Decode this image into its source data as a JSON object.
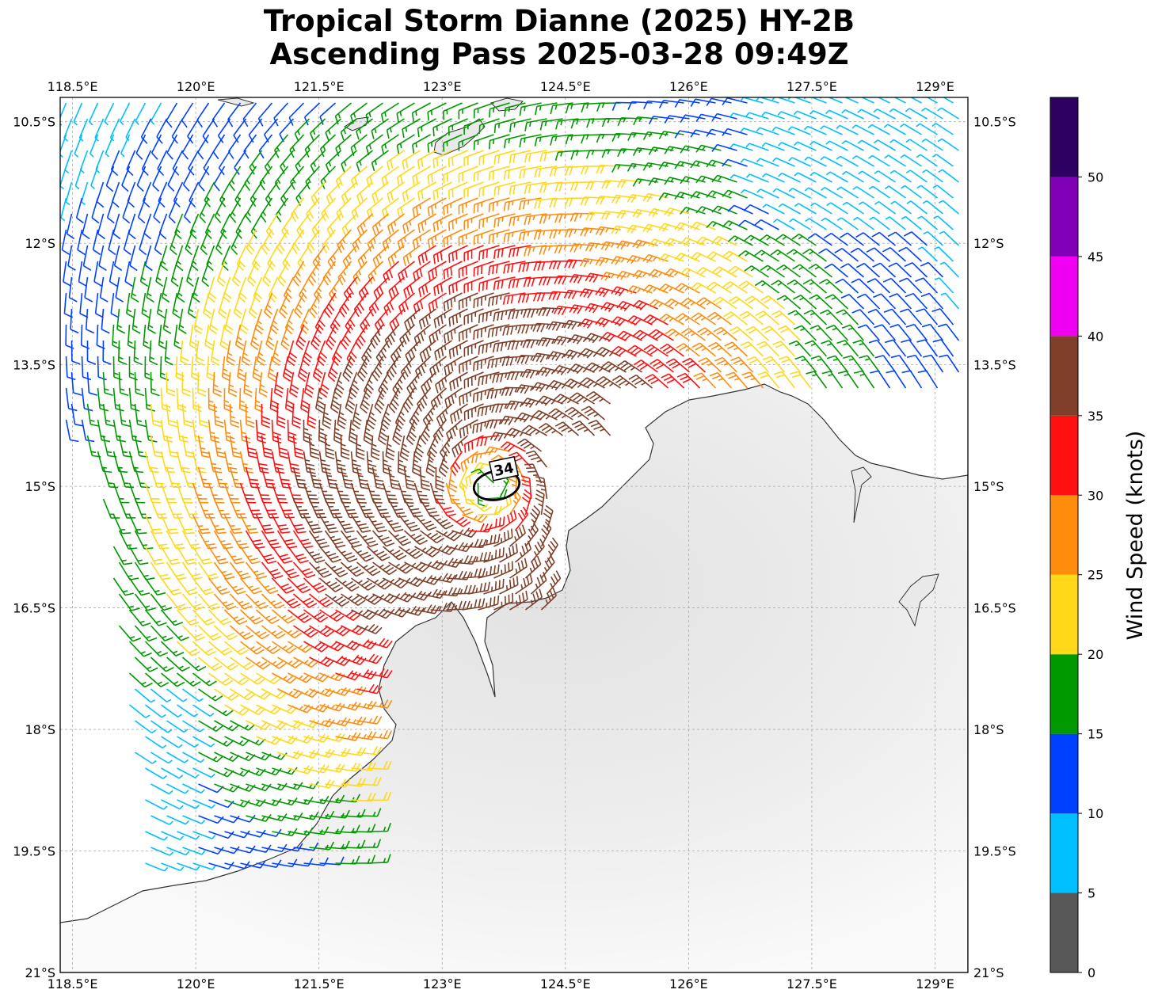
{
  "title": {
    "line1": "Tropical Storm Dianne (2025) HY-2B",
    "line2": "Ascending Pass 2025-03-28 09:49Z"
  },
  "map": {
    "projection": "plate-carree",
    "lon_range": [
      118.35,
      129.4
    ],
    "lat_range": [
      -21.0,
      -10.2
    ],
    "gridlines": true,
    "background": "grayscale land shading",
    "lon_ticks": [
      {
        "value": 118.5,
        "label": "118.5°E"
      },
      {
        "value": 120.0,
        "label": "120°E"
      },
      {
        "value": 121.5,
        "label": "121.5°E"
      },
      {
        "value": 123.0,
        "label": "123°E"
      },
      {
        "value": 124.5,
        "label": "124.5°E"
      },
      {
        "value": 126.0,
        "label": "126°E"
      },
      {
        "value": 127.5,
        "label": "127.5°E"
      },
      {
        "value": 129.0,
        "label": "129°E"
      }
    ],
    "lat_ticks": [
      {
        "value": -10.5,
        "label": "10.5°S"
      },
      {
        "value": -12.0,
        "label": "12°S"
      },
      {
        "value": -13.5,
        "label": "13.5°S"
      },
      {
        "value": -15.0,
        "label": "15°S"
      },
      {
        "value": -16.5,
        "label": "16.5°S"
      },
      {
        "value": -18.0,
        "label": "18°S"
      },
      {
        "value": -19.5,
        "label": "19.5°S"
      },
      {
        "value": -21.0,
        "label": "21°S"
      }
    ],
    "storm_center": {
      "lon": 123.55,
      "lat": -15.0
    },
    "contour": {
      "label": "34",
      "level_kt": 34
    }
  },
  "colorbar": {
    "label": "Wind Speed (knots)",
    "ticks": [
      "0",
      "5",
      "10",
      "15",
      "20",
      "25",
      "30",
      "35",
      "40",
      "45",
      "50"
    ],
    "bins": [
      {
        "min": 0,
        "max": 5,
        "color": "#575757"
      },
      {
        "min": 5,
        "max": 10,
        "color": "#00bfff"
      },
      {
        "min": 10,
        "max": 15,
        "color": "#0040ff"
      },
      {
        "min": 15,
        "max": 20,
        "color": "#009900"
      },
      {
        "min": 20,
        "max": 25,
        "color": "#ffd81a"
      },
      {
        "min": 25,
        "max": 30,
        "color": "#ff8c0d"
      },
      {
        "min": 30,
        "max": 35,
        "color": "#ff1111"
      },
      {
        "min": 35,
        "max": 40,
        "color": "#7f3f28"
      },
      {
        "min": 40,
        "max": 45,
        "color": "#f000f0"
      },
      {
        "min": 45,
        "max": 50,
        "color": "#8000b8"
      },
      {
        "min": 50,
        "max": 55,
        "color": "#2e0060"
      }
    ]
  }
}
